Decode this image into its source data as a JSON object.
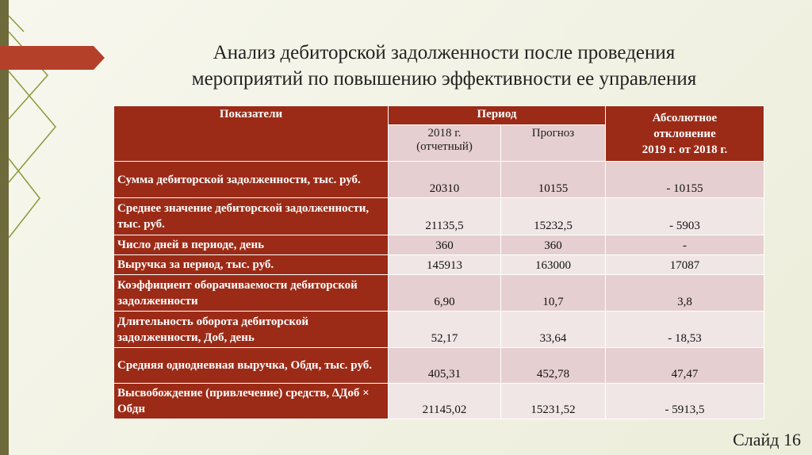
{
  "header": {
    "title_line1": "Анализ дебиторской задолженности после проведения",
    "title_line2": "мероприятий по повышению эффективности ее управления"
  },
  "table": {
    "columns": {
      "indicator": "Показатели",
      "period": "Период",
      "year": "2018 г. (отчетный)",
      "forecast": "Прогноз",
      "deviation": [
        "Абсолютное",
        "отклонение",
        "2019 г. от 2018 г."
      ]
    },
    "rows": [
      [
        "Сумма дебиторской задолженности, тыс. руб.",
        "20310",
        "10155",
        "- 10155"
      ],
      [
        "Среднее значение дебиторской задолженности, тыс. руб.",
        "21135,5",
        "15232,5",
        "- 5903"
      ],
      [
        "Число дней в периоде, день",
        "360",
        "360",
        "-"
      ],
      [
        "Выручка за период, тыс. руб.",
        "145913",
        "163000",
        "17087"
      ],
      [
        "Коэффициент оборачиваемости дебиторской задолженности",
        "6,90",
        "10,7",
        "3,8"
      ],
      [
        "Длительность оборота дебиторской задолженности, Доб, день",
        "52,17",
        "33,64",
        "- 18,53"
      ],
      [
        "Средняя однодневная выручка, Обдн, тыс. руб.",
        "405,31",
        "452,78",
        "47,47"
      ],
      [
        "Высвобождение (привлечение) средств, ∆Доб × Обдн",
        "21145,02",
        "15231,52",
        "- 5913,5"
      ]
    ]
  },
  "footer": {
    "slide": "Слайд 16"
  }
}
